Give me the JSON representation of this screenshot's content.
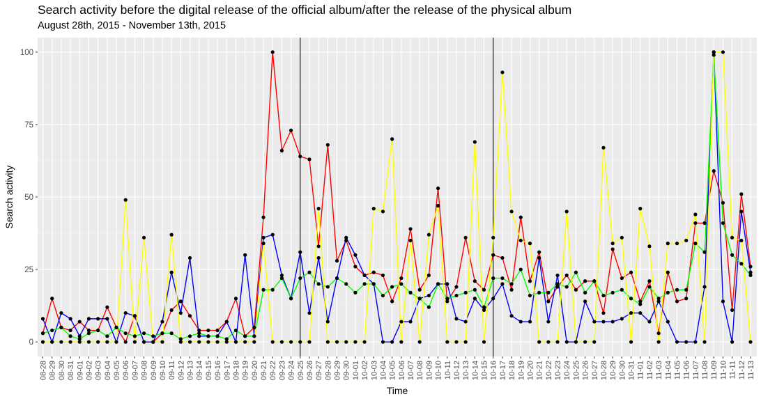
{
  "chart_data": {
    "type": "line",
    "title": "Search activity before the digital release of the official album/after the release of the physical album",
    "subtitle": "August 28th, 2015 - November 13th, 2015",
    "xlabel": "Time",
    "ylabel": "Search activity",
    "ylim": [
      -5,
      105
    ],
    "yticks": [
      0,
      25,
      50,
      75,
      100
    ],
    "grid": true,
    "legend": "none",
    "categories": [
      "08-28",
      "08-29",
      "08-30",
      "08-31",
      "09-01",
      "09-02",
      "09-03",
      "09-04",
      "09-05",
      "09-06",
      "09-07",
      "09-08",
      "09-09",
      "09-10",
      "09-11",
      "09-12",
      "09-13",
      "09-14",
      "09-15",
      "09-16",
      "09-17",
      "09-18",
      "09-19",
      "09-20",
      "09-21",
      "09-22",
      "09-23",
      "09-24",
      "09-25",
      "09-26",
      "09-27",
      "09-28",
      "09-29",
      "09-30",
      "10-01",
      "10-02",
      "10-03",
      "10-04",
      "10-05",
      "10-06",
      "10-07",
      "10-08",
      "10-09",
      "10-10",
      "10-11",
      "10-12",
      "10-13",
      "10-14",
      "10-15",
      "10-16",
      "10-17",
      "10-18",
      "10-19",
      "10-20",
      "10-21",
      "10-22",
      "10-23",
      "10-24",
      "10-25",
      "10-26",
      "10-27",
      "10-28",
      "10-29",
      "10-30",
      "10-31",
      "11-01",
      "11-02",
      "11-03",
      "11-04",
      "11-05",
      "11-06",
      "11-07",
      "11-08",
      "11-09",
      "11-10",
      "11-11",
      "11-12",
      "11-13"
    ],
    "vlines": [
      "09-25",
      "10-16"
    ],
    "series": [
      {
        "color": "#ff0000",
        "values": [
          3,
          15,
          5,
          4,
          7,
          4,
          4,
          12,
          5,
          0,
          9,
          0,
          0,
          3,
          11,
          14,
          9,
          4,
          4,
          4,
          7,
          15,
          2,
          5,
          43,
          100,
          66,
          73,
          64,
          63,
          33,
          68,
          28,
          35,
          26,
          23,
          24,
          23,
          14,
          22,
          39,
          18,
          23,
          53,
          14,
          19,
          36,
          21,
          18,
          30,
          29,
          18,
          43,
          21,
          31,
          14,
          19,
          23,
          18,
          21,
          21,
          10,
          32,
          22,
          24,
          14,
          21,
          3,
          24,
          14,
          15,
          41,
          41,
          59,
          48,
          11,
          51,
          26
        ]
      },
      {
        "color": "#0000ff",
        "values": [
          8,
          0,
          10,
          8,
          2,
          8,
          8,
          8,
          0,
          10,
          9,
          0,
          0,
          7,
          24,
          10,
          29,
          2,
          2,
          2,
          7,
          0,
          30,
          2,
          36,
          37,
          23,
          15,
          31,
          10,
          29,
          7,
          22,
          36,
          30,
          23,
          20,
          0,
          0,
          7,
          7,
          15,
          16,
          20,
          20,
          8,
          7,
          15,
          11,
          15,
          20,
          9,
          7,
          7,
          29,
          7,
          23,
          0,
          0,
          14,
          7,
          7,
          7,
          8,
          10,
          10,
          7,
          14,
          7,
          0,
          0,
          0,
          19,
          100,
          14,
          0,
          45,
          24
        ]
      },
      {
        "color": "#00ff00",
        "values": [
          3,
          4,
          5,
          2,
          1,
          3,
          4,
          2,
          5,
          3,
          2,
          3,
          2,
          3,
          3,
          1,
          2,
          3,
          2,
          2,
          1,
          4,
          2,
          2,
          18,
          18,
          22,
          15,
          22,
          24,
          20,
          19,
          22,
          20,
          17,
          20,
          20,
          16,
          19,
          20,
          17,
          15,
          12,
          20,
          15,
          16,
          17,
          18,
          12,
          22,
          22,
          20,
          25,
          16,
          17,
          17,
          20,
          19,
          24,
          17,
          21,
          16,
          17,
          18,
          15,
          13,
          19,
          15,
          17,
          18,
          18,
          34,
          31,
          99,
          41,
          30,
          27,
          23
        ]
      },
      {
        "color": "#ffff00",
        "values": [
          0,
          0,
          0,
          0,
          0,
          0,
          0,
          0,
          0,
          49,
          0,
          36,
          0,
          0,
          37,
          0,
          0,
          0,
          0,
          0,
          0,
          0,
          0,
          0,
          34,
          0,
          0,
          0,
          0,
          0,
          46,
          0,
          0,
          0,
          0,
          0,
          46,
          45,
          70,
          0,
          35,
          0,
          37,
          47,
          0,
          0,
          0,
          69,
          0,
          36,
          93,
          45,
          35,
          34,
          0,
          0,
          0,
          45,
          0,
          0,
          0,
          67,
          34,
          36,
          0,
          46,
          33,
          0,
          34,
          34,
          35,
          44,
          0,
          100,
          100,
          36,
          35,
          0
        ]
      }
    ]
  }
}
